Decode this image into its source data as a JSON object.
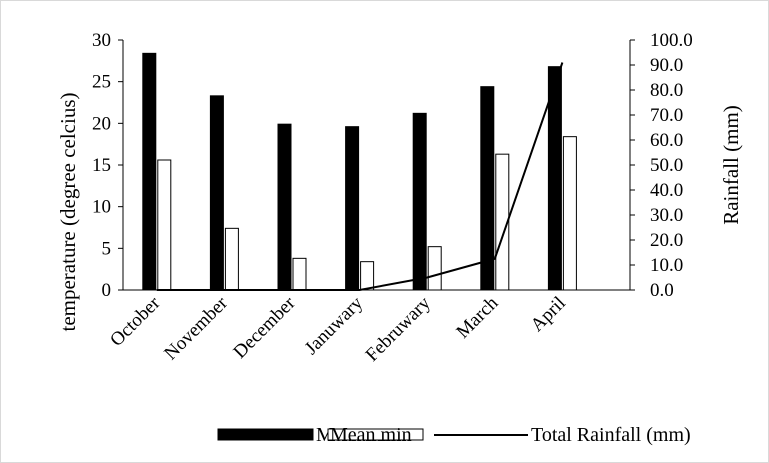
{
  "chart_data": {
    "type": "bar",
    "categories": [
      "October",
      "November",
      "December",
      "Januwary",
      "Februwary",
      "March",
      "April"
    ],
    "series": [
      {
        "name": "Mean max",
        "type": "bar",
        "axis": "left",
        "values": [
          28.4,
          23.3,
          19.9,
          19.6,
          21.2,
          24.4,
          26.8
        ],
        "color": "#000000"
      },
      {
        "name": "Mean min",
        "type": "bar",
        "axis": "left",
        "values": [
          15.6,
          7.4,
          3.8,
          3.4,
          5.2,
          16.3,
          18.4
        ],
        "color": "#ffffff"
      },
      {
        "name": "Total Rainfall (mm)",
        "type": "line",
        "axis": "right",
        "values": [
          0.0,
          0.0,
          0.0,
          0.0,
          5.0,
          12.5,
          91.0
        ],
        "color": "#000000"
      }
    ],
    "ylabel": "temperature (degree celcius)",
    "y2label": "Rainfall (mm)",
    "ylim": [
      0,
      30
    ],
    "y2lim": [
      0,
      100
    ],
    "yticks": [
      "0",
      "5",
      "10",
      "15",
      "20",
      "25",
      "30"
    ],
    "y2ticks": [
      "0.0",
      "10.0",
      "20.0",
      "30.0",
      "40.0",
      "50.0",
      "60.0",
      "70.0",
      "80.0",
      "90.0",
      "100.0"
    ],
    "grid": false,
    "legend_position": "bottom"
  }
}
